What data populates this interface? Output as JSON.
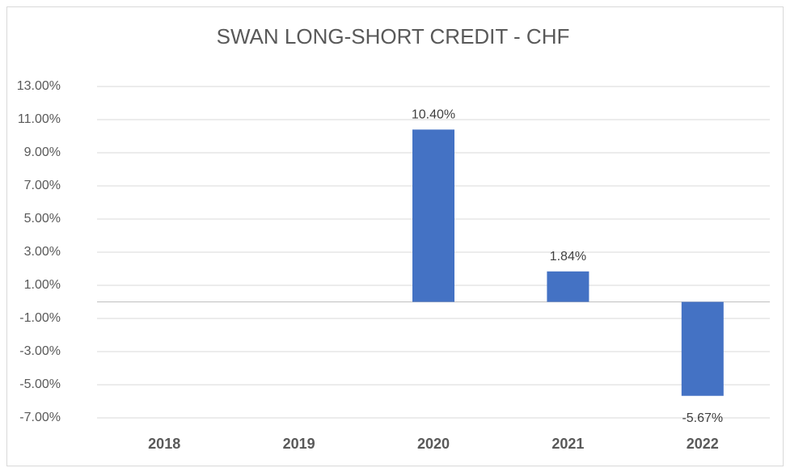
{
  "chart_data": {
    "type": "bar",
    "title": "SWAN LONG-SHORT CREDIT - CHF",
    "categories": [
      "2018",
      "2019",
      "2020",
      "2021",
      "2022"
    ],
    "values": [
      null,
      null,
      10.4,
      1.84,
      -5.67
    ],
    "value_labels": [
      null,
      null,
      "10.40%",
      "1.84%",
      "-5.67%"
    ],
    "color": "#4472c4",
    "ylim": [
      -7,
      13
    ],
    "yticks": [
      {
        "value": 13,
        "label": "13.00%"
      },
      {
        "value": 11,
        "label": "11.00%"
      },
      {
        "value": 9,
        "label": "9.00%"
      },
      {
        "value": 7,
        "label": "7.00%"
      },
      {
        "value": 5,
        "label": "5.00%"
      },
      {
        "value": 3,
        "label": "3.00%"
      },
      {
        "value": 1,
        "label": "1.00%"
      },
      {
        "value": -1,
        "label": "-1.00%"
      },
      {
        "value": -3,
        "label": "-3.00%"
      },
      {
        "value": -5,
        "label": "-5.00%"
      },
      {
        "value": -7,
        "label": "-7.00%"
      }
    ],
    "grid": true
  }
}
